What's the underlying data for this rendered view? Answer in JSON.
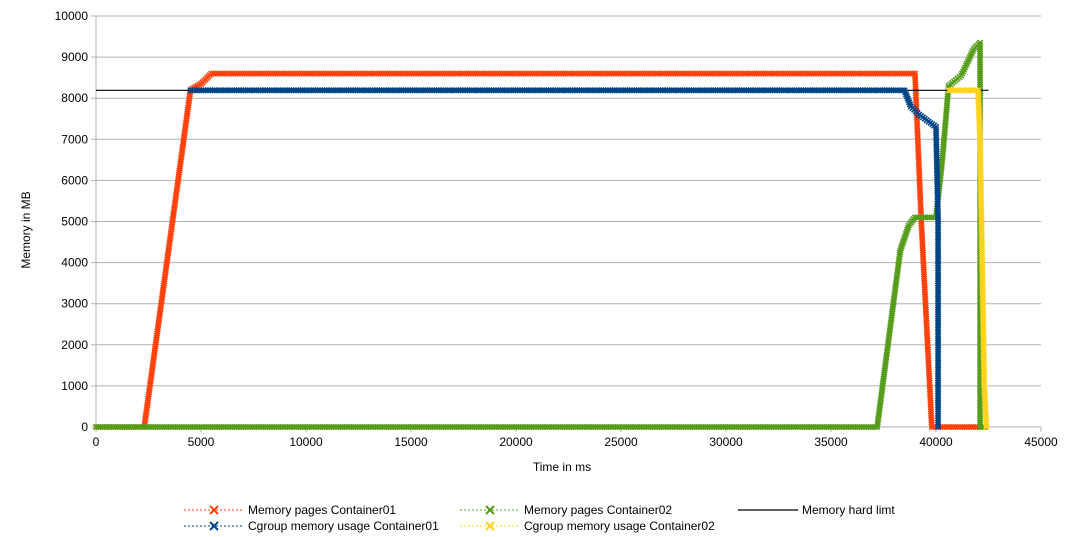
{
  "chart_data": {
    "type": "line",
    "title": "",
    "xlabel": "Time in ms",
    "ylabel": "Memory in MB",
    "xlim": [
      0,
      45000
    ],
    "ylim": [
      0,
      10000
    ],
    "x_ticks": [
      0,
      5000,
      10000,
      15000,
      20000,
      25000,
      30000,
      35000,
      40000,
      45000
    ],
    "y_ticks": [
      0,
      1000,
      2000,
      3000,
      4000,
      5000,
      6000,
      7000,
      8000,
      9000,
      10000
    ],
    "grid": "horizontal",
    "legend_position": "bottom",
    "series": [
      {
        "name": "Memory pages Container01",
        "color": "#ff420e",
        "style": "dashed-with-x-markers",
        "points": [
          [
            0,
            0
          ],
          [
            2300,
            0
          ],
          [
            4500,
            8200
          ],
          [
            5000,
            8350
          ],
          [
            5500,
            8600
          ],
          [
            39000,
            8600
          ],
          [
            39300,
            5000
          ],
          [
            39600,
            2000
          ],
          [
            39800,
            0
          ],
          [
            42400,
            0
          ]
        ]
      },
      {
        "name": "Memory pages Container02",
        "color": "#579d1c",
        "style": "dashed-with-x-markers",
        "points": [
          [
            0,
            0
          ],
          [
            37200,
            0
          ],
          [
            38300,
            4300
          ],
          [
            38700,
            4900
          ],
          [
            39000,
            5100
          ],
          [
            40000,
            5100
          ],
          [
            40300,
            6500
          ],
          [
            40600,
            8300
          ],
          [
            41200,
            8550
          ],
          [
            41800,
            9200
          ],
          [
            42100,
            9350
          ],
          [
            42100,
            0
          ],
          [
            42400,
            0
          ]
        ]
      },
      {
        "name": "Memory hard limt",
        "color": "#000000",
        "style": "solid",
        "points": [
          [
            0,
            8192
          ],
          [
            42500,
            8192
          ]
        ]
      },
      {
        "name": "Cgroup memory usage Container01",
        "color": "#004586",
        "style": "dashed-with-x-markers",
        "points": [
          [
            4500,
            8192
          ],
          [
            38500,
            8192
          ],
          [
            38800,
            7800
          ],
          [
            39200,
            7600
          ],
          [
            40000,
            7300
          ],
          [
            40100,
            5000
          ],
          [
            40100,
            0
          ]
        ]
      },
      {
        "name": "Cgroup memory usage Container02",
        "color": "#ffd320",
        "style": "dashed-with-x-markers",
        "points": [
          [
            40600,
            8192
          ],
          [
            42000,
            8192
          ],
          [
            42100,
            7000
          ],
          [
            42200,
            4000
          ],
          [
            42300,
            1000
          ],
          [
            42400,
            0
          ]
        ]
      }
    ]
  }
}
